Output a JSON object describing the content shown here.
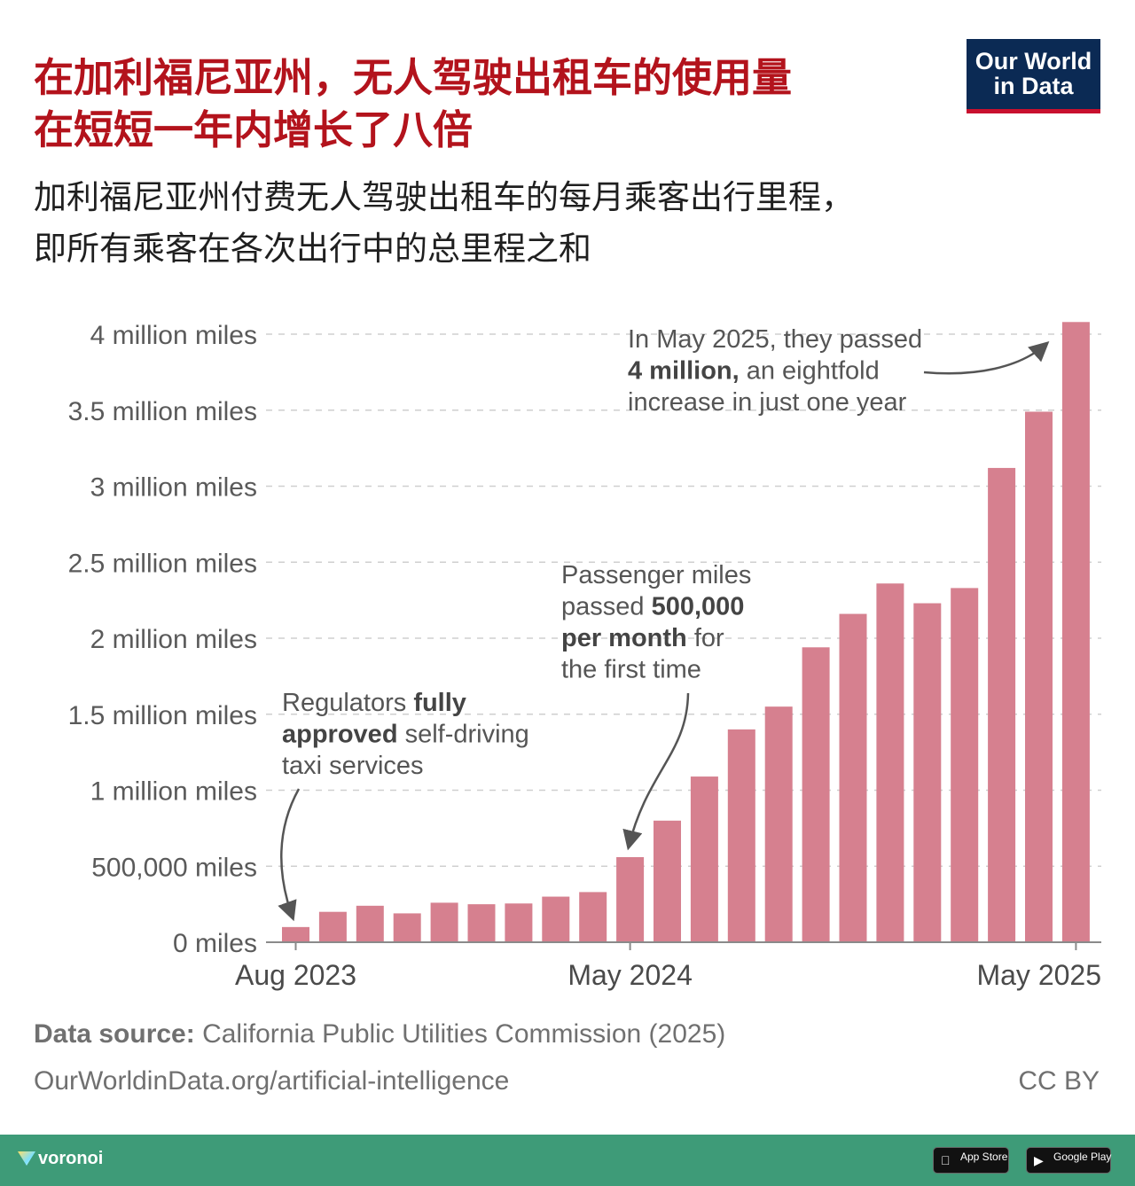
{
  "header": {
    "title_line1": "在加利福尼亚州，无人驾驶出租车的使用量",
    "title_line2": "在短短一年内增长了八倍",
    "subtitle_line1": "加利福尼亚州付费无人驾驶出租车的每月乘客出行里程，",
    "subtitle_line2": "即所有乘客在各次出行中的总里程之和",
    "logo_line1": "Our World",
    "logo_line2": "in Data",
    "colors": {
      "title": "#b3131c",
      "logo_bg": "#0b2a54",
      "logo_accent": "#c8102e"
    }
  },
  "chart_data": {
    "type": "bar",
    "bar_color": "#d6808f",
    "grid": true,
    "ylim": [
      0,
      4000000
    ],
    "yticks": [
      {
        "value": 0,
        "label": "0 miles"
      },
      {
        "value": 500000,
        "label": "500,000 miles"
      },
      {
        "value": 1000000,
        "label": "1 million miles"
      },
      {
        "value": 1500000,
        "label": "1.5 million miles"
      },
      {
        "value": 2000000,
        "label": "2 million miles"
      },
      {
        "value": 2500000,
        "label": "2.5 million miles"
      },
      {
        "value": 3000000,
        "label": "3 million miles"
      },
      {
        "value": 3500000,
        "label": "3.5 million miles"
      },
      {
        "value": 4000000,
        "label": "4 million miles"
      }
    ],
    "xtick_labels": [
      {
        "index": 1,
        "label": "Aug 2023"
      },
      {
        "index": 10,
        "label": "May 2024"
      },
      {
        "index": 22,
        "label": "May 2025"
      }
    ],
    "values": [
      100000,
      200000,
      240000,
      190000,
      260000,
      250000,
      255000,
      300000,
      330000,
      560000,
      800000,
      1090000,
      1400000,
      1550000,
      1940000,
      2160000,
      2360000,
      2230000,
      2330000,
      3120000,
      3490000,
      4080000
    ],
    "annotations": [
      {
        "id": "regulators",
        "lines": [
          [
            {
              "text": "Regulators ",
              "bold": false
            },
            {
              "text": "fully",
              "bold": true
            }
          ],
          [
            {
              "text": "approved",
              "bold": true
            },
            {
              "text": " self-driving",
              "bold": false
            }
          ],
          [
            {
              "text": "taxi services",
              "bold": false
            }
          ]
        ]
      },
      {
        "id": "passed-500k",
        "lines": [
          [
            {
              "text": "Passenger miles",
              "bold": false
            }
          ],
          [
            {
              "text": "passed ",
              "bold": false
            },
            {
              "text": "500,000",
              "bold": true
            }
          ],
          [
            {
              "text": "per month",
              "bold": true
            },
            {
              "text": " for",
              "bold": false
            }
          ],
          [
            {
              "text": "the first time",
              "bold": false
            }
          ]
        ]
      },
      {
        "id": "passed-4m",
        "lines": [
          [
            {
              "text": "In May 2025, they passed",
              "bold": false
            }
          ],
          [
            {
              "text": "4 million,",
              "bold": true
            },
            {
              "text": " an eightfold",
              "bold": false
            }
          ],
          [
            {
              "text": "increase in just one year",
              "bold": false
            }
          ]
        ]
      }
    ]
  },
  "footer": {
    "source_label": "Data source:",
    "source_text": " California Public Utilities Commission (2025)",
    "url": "OurWorldinData.org/artificial-intelligence",
    "license": "CC BY"
  },
  "bottom_bar": {
    "brand": "voronoi",
    "app_store": "App Store",
    "google_play": "Google Play",
    "color": "#3e9b78"
  }
}
